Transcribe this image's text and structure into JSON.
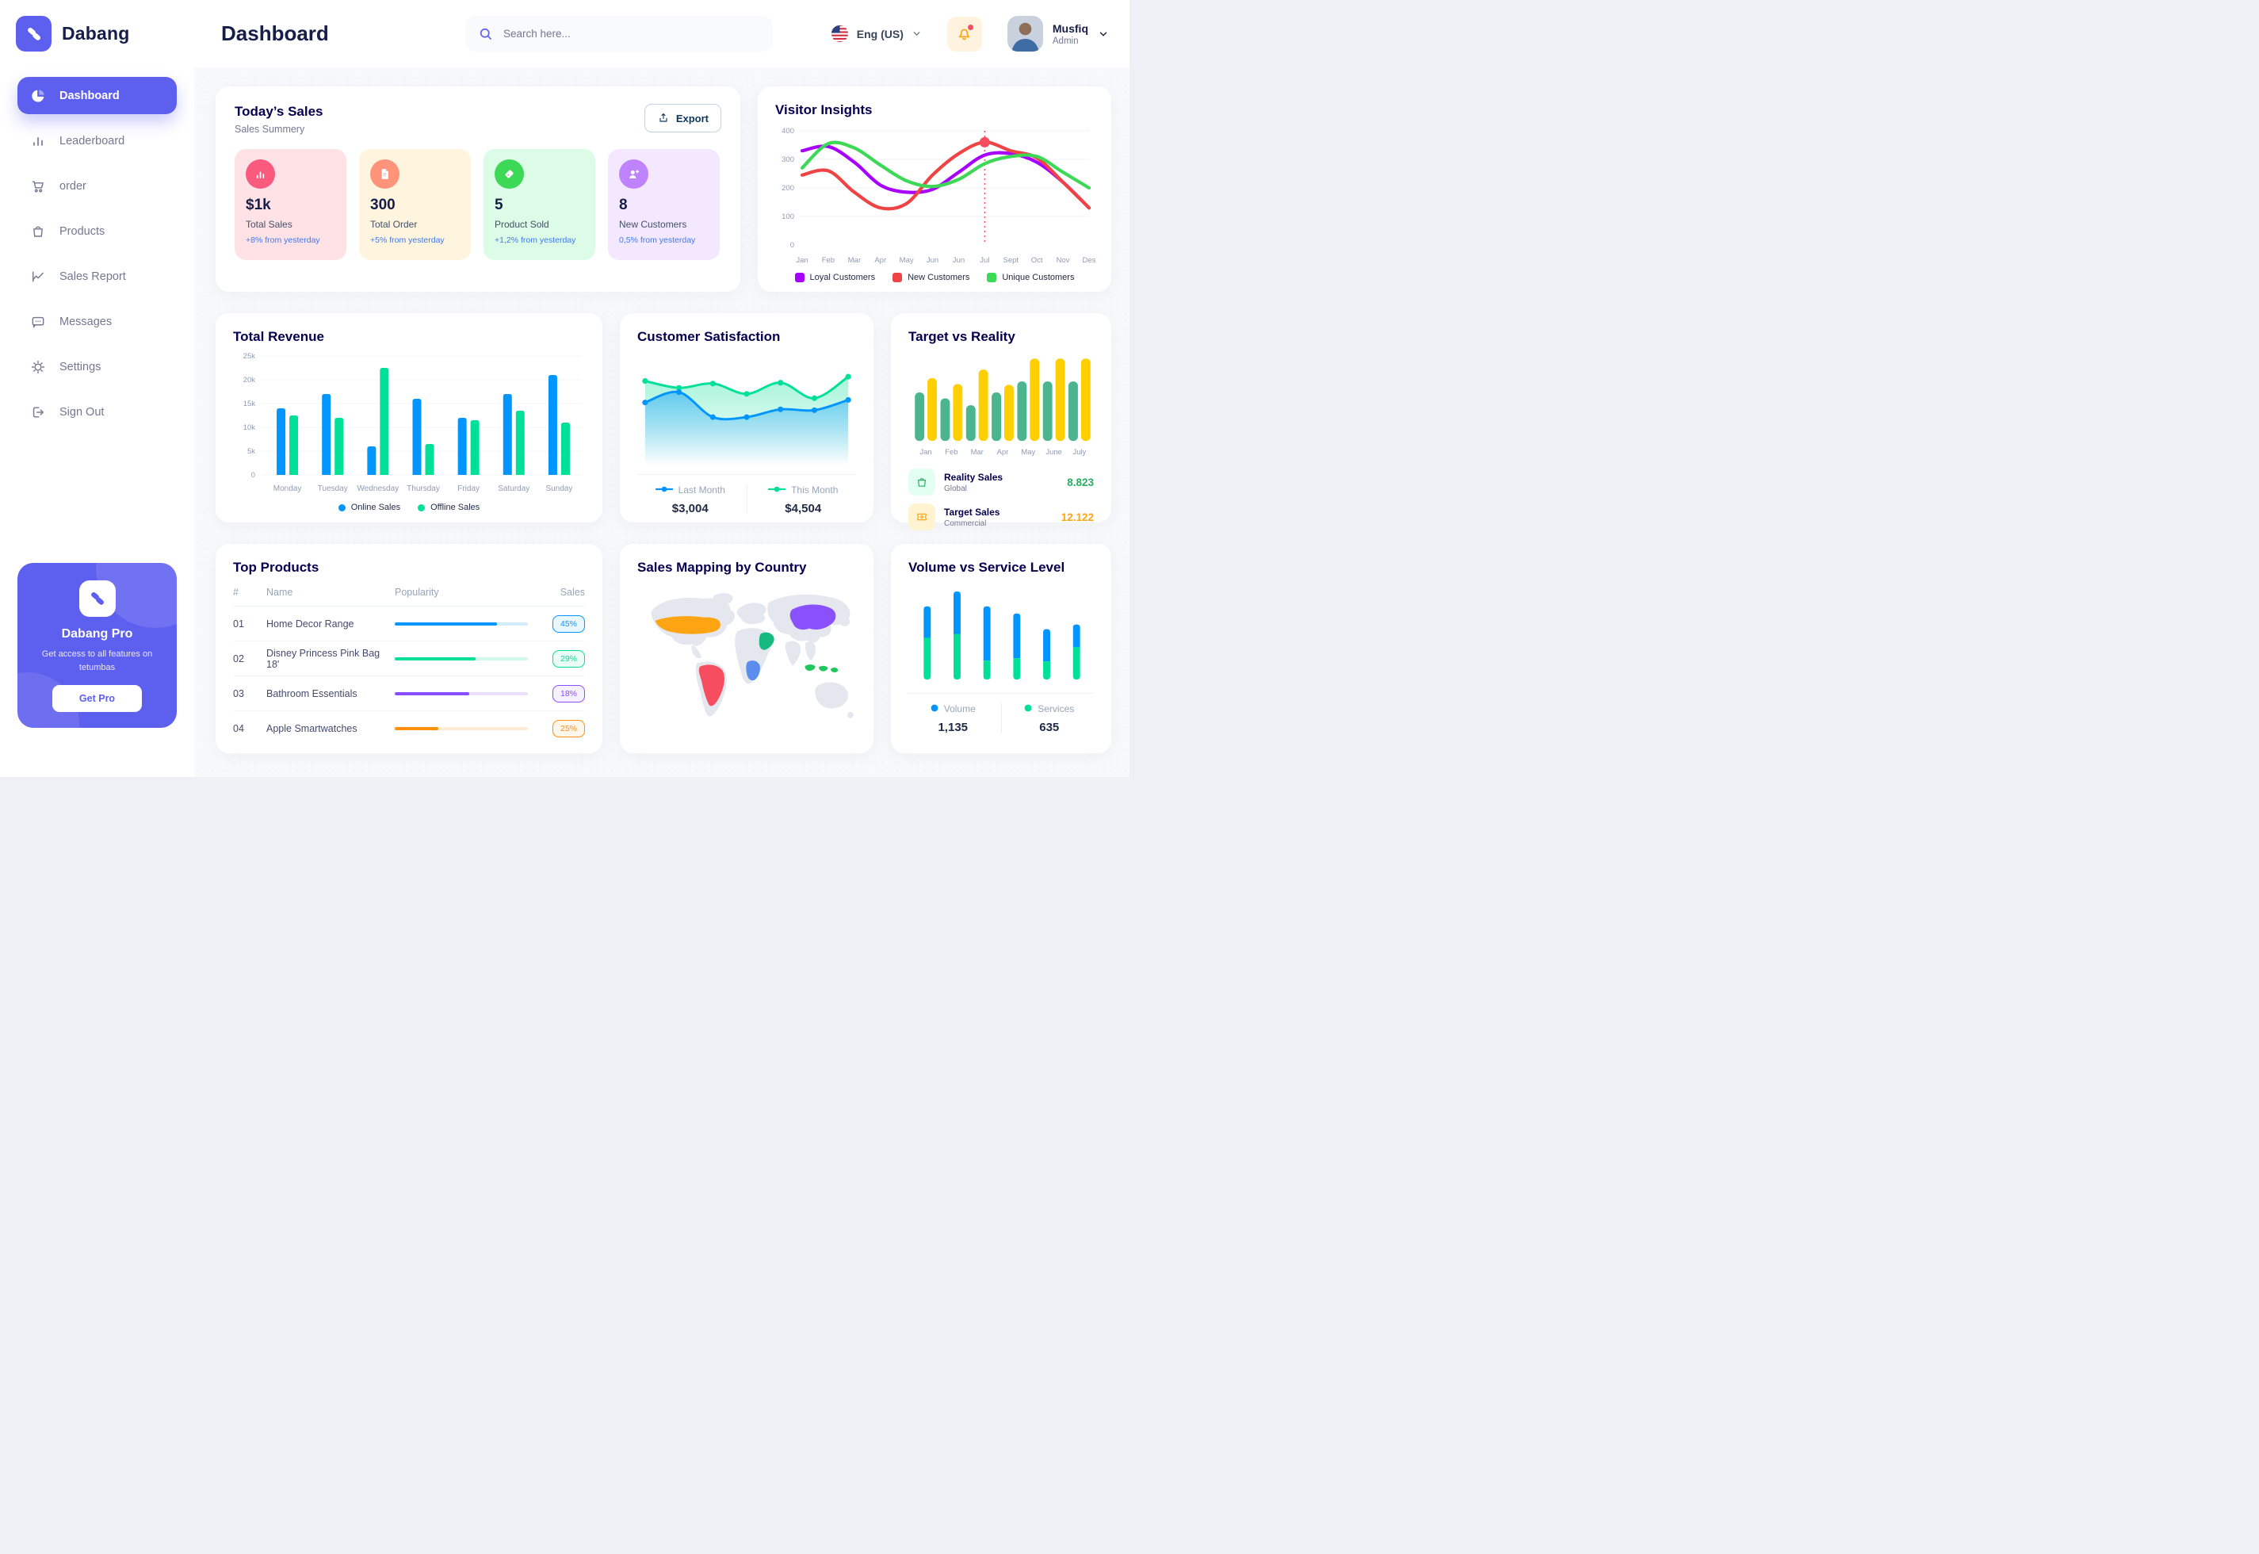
{
  "app": {
    "brand": "Dabang"
  },
  "colors": {
    "primary": "#5d5fef",
    "navy": "#05004e",
    "text_dark": "#151d48",
    "text_gray": "#737791",
    "blue": "#0095ff",
    "green": "#00e096",
    "red_dot": "#f64e60",
    "bell_orange": "#ffa412"
  },
  "sidebar": {
    "items": [
      {
        "icon": "pie-chart",
        "label": "Dashboard",
        "active": true
      },
      {
        "icon": "bar-chart",
        "label": "Leaderboard",
        "active": false
      },
      {
        "icon": "cart",
        "label": "order",
        "active": false
      },
      {
        "icon": "bag",
        "label": "Products",
        "active": false
      },
      {
        "icon": "line-chart",
        "label": "Sales Report",
        "active": false
      },
      {
        "icon": "message",
        "label": "Messages",
        "active": false
      },
      {
        "icon": "gear",
        "label": "Settings",
        "active": false
      },
      {
        "icon": "sign-out",
        "label": "Sign Out",
        "active": false
      }
    ],
    "promo": {
      "title": "Dabang Pro",
      "description": "Get access to all features on tetumbas",
      "button": "Get Pro"
    }
  },
  "header": {
    "title": "Dashboard",
    "search_placeholder": "Search here...",
    "language": "Eng (US)",
    "user": {
      "name": "Musfiq",
      "role": "Admin"
    }
  },
  "panels": {
    "todays_sales": {
      "title": "Today’s Sales",
      "subtitle": "Sales Summery",
      "export_label": "Export",
      "stats": [
        {
          "icon": "sales-chart",
          "value": "$1k",
          "label": "Total Sales",
          "delta": "+8% from yesterday",
          "bg": "#ffe2e5",
          "icon_bg": "#fa5a7d"
        },
        {
          "icon": "order-file",
          "value": "300",
          "label": "Total Order",
          "delta": "+5% from yesterday",
          "bg": "#fff4de",
          "icon_bg": "#ff947a"
        },
        {
          "icon": "product-tag",
          "value": "5",
          "label": "Product Sold",
          "delta": "+1,2% from yesterday",
          "bg": "#dcfce7",
          "icon_bg": "#3cd856"
        },
        {
          "icon": "new-customer",
          "value": "8",
          "label": "New Customers",
          "delta": "0,5% from yesterday",
          "bg": "#f3e8ff",
          "icon_bg": "#bf83ff"
        }
      ]
    },
    "visitor_insights": {
      "title": "Visitor Insights"
    },
    "total_revenue": {
      "title": "Total Revenue"
    },
    "customer_satisfaction": {
      "title": "Customer Satisfaction"
    },
    "target_vs_reality": {
      "title": "Target vs Reality"
    },
    "top_products": {
      "title": "Top Products",
      "columns": [
        "#",
        "Name",
        "Popularity",
        "Sales"
      ],
      "rows": [
        {
          "num": "01",
          "name": "Home Decor Range",
          "popularity": 77,
          "sales": "45%",
          "color": "#0095ff"
        },
        {
          "num": "02",
          "name": "Disney Princess Pink Bag 18'",
          "popularity": 61,
          "sales": "29%",
          "color": "#00e096"
        },
        {
          "num": "03",
          "name": "Bathroom Essentials",
          "popularity": 56,
          "sales": "18%",
          "color": "#884dff"
        },
        {
          "num": "04",
          "name": "Apple Smartwatches",
          "popularity": 33,
          "sales": "25%",
          "color": "#ff8f0d"
        }
      ]
    },
    "sales_map": {
      "title": "Sales Mapping by Country"
    },
    "volume_service": {
      "title": "Volume vs Service Level"
    }
  },
  "chart_data": [
    {
      "name": "visitor_insights",
      "type": "line",
      "title": "Visitor Insights",
      "x": [
        "Jan",
        "Feb",
        "Mar",
        "Apr",
        "May",
        "Jun",
        "Jun",
        "Jul",
        "Sept",
        "Oct",
        "Nov",
        "Des"
      ],
      "ylim": [
        0,
        400
      ],
      "yticks": [
        0,
        100,
        200,
        300,
        400
      ],
      "highlight_index": 7,
      "series": [
        {
          "name": "Loyal Customers",
          "color": "#a700ff",
          "values": [
            330,
            345,
            290,
            210,
            185,
            195,
            255,
            315,
            320,
            290,
            220,
            130
          ]
        },
        {
          "name": "New Customers",
          "color": "#ef4444",
          "values": [
            245,
            260,
            185,
            130,
            145,
            245,
            320,
            360,
            330,
            305,
            220,
            130
          ]
        },
        {
          "name": "Unique Customers",
          "color": "#3cd856",
          "values": [
            270,
            355,
            340,
            280,
            225,
            205,
            230,
            285,
            310,
            310,
            255,
            200
          ]
        }
      ]
    },
    {
      "name": "total_revenue",
      "type": "bar",
      "title": "Total Revenue",
      "x": [
        "Monday",
        "Tuesday",
        "Wednesday",
        "Thursday",
        "Friday",
        "Saturday",
        "Sunday"
      ],
      "ylim": [
        0,
        25
      ],
      "yticks": [
        0,
        5,
        10,
        15,
        20,
        25
      ],
      "ytick_labels": [
        "0",
        "5k",
        "10k",
        "15k",
        "20k",
        "25k"
      ],
      "series": [
        {
          "name": "Online Sales",
          "color": "#0095ff",
          "values": [
            14,
            17,
            6,
            16,
            12,
            17,
            21
          ]
        },
        {
          "name": "Offline Sales",
          "color": "#00e096",
          "values": [
            12.5,
            12,
            22.5,
            6.5,
            11.5,
            13.5,
            11
          ]
        }
      ]
    },
    {
      "name": "customer_satisfaction",
      "type": "area",
      "title": "Customer Satisfaction",
      "series": [
        {
          "name": "Last Month",
          "total": "$3,004",
          "color": "#0095ff",
          "values": [
            55,
            67,
            38,
            38,
            47,
            46,
            58
          ]
        },
        {
          "name": "This Month",
          "total": "$4,504",
          "color": "#00e096",
          "values": [
            80,
            72,
            77,
            65,
            78,
            60,
            85
          ]
        }
      ]
    },
    {
      "name": "target_vs_reality",
      "type": "bar",
      "title": "Target vs Reality",
      "x": [
        "Jan",
        "Feb",
        "Mar",
        "Apr",
        "May",
        "June",
        "July"
      ],
      "series": [
        {
          "name": "Reality Sales",
          "sublabel": "Global",
          "display_value": "8.823",
          "color": "#4ab58e",
          "icon_bg": "#e2fff1",
          "value_color": "#27ae60",
          "values": [
            57,
            50,
            42,
            57,
            70,
            70,
            70
          ]
        },
        {
          "name": "Target Sales",
          "sublabel": "Commercial",
          "display_value": "12.122",
          "color": "#ffcf00",
          "icon_bg": "#fff3d2",
          "value_color": "#ffa412",
          "values": [
            74,
            67,
            84,
            66,
            97,
            97,
            97
          ]
        }
      ]
    },
    {
      "name": "volume_vs_service_level",
      "type": "stacked-bar",
      "title": "Volume vs Service Level",
      "series": [
        {
          "name": "Volume",
          "total": "1,135",
          "color": "#0095ff",
          "values": [
            40,
            54,
            69,
            57,
            41,
            29
          ]
        },
        {
          "name": "Services",
          "total": "635",
          "color": "#00e096",
          "values": [
            53,
            58,
            24,
            27,
            23,
            41
          ]
        }
      ]
    },
    {
      "name": "sales_mapping_by_country",
      "type": "map",
      "title": "Sales Mapping by Country",
      "countries": [
        {
          "key": "usa",
          "name": "United States",
          "color": "#ffa412"
        },
        {
          "key": "brazil",
          "name": "Brazil",
          "color": "#f64e60"
        },
        {
          "key": "saudi",
          "name": "Saudi Arabia",
          "color": "#16b97f"
        },
        {
          "key": "congo",
          "name": "DR Congo",
          "color": "#5b8def"
        },
        {
          "key": "china",
          "name": "China",
          "color": "#8950fc"
        },
        {
          "key": "indonesia",
          "name": "Indonesia",
          "color": "#22c55e"
        }
      ]
    }
  ]
}
